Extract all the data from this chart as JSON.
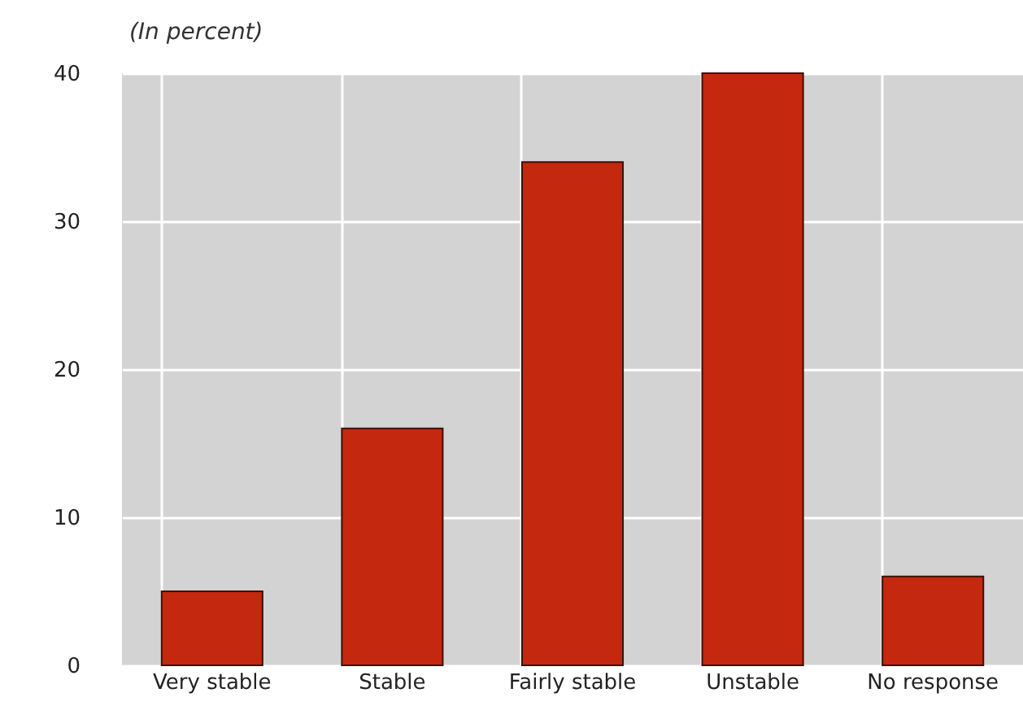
{
  "chart_data": {
    "type": "bar",
    "subtitle": "(In percent)",
    "categories": [
      "Very stable",
      "Stable",
      "Fairly stable",
      "Unstable",
      "No response"
    ],
    "values": [
      5,
      16,
      34,
      40,
      6
    ],
    "color": "#c4280e",
    "ylim": [
      0,
      40
    ],
    "yticks": [
      0,
      10,
      20,
      30,
      40
    ],
    "grid": true
  }
}
